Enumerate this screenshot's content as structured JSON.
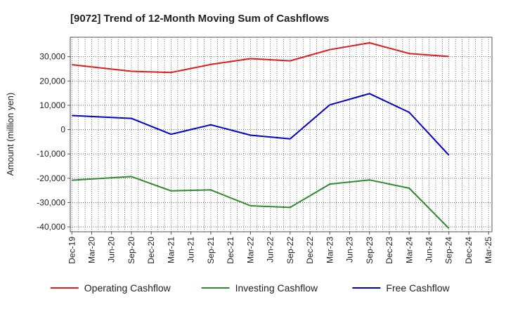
{
  "chart_data": {
    "type": "line",
    "title": "[9072]  Trend of 12-Month Moving Sum of Cashflows",
    "xlabel": "",
    "ylabel": "Amount (million yen)",
    "categories": [
      "Dec-19",
      "Mar-20",
      "Jun-20",
      "Sep-20",
      "Dec-20",
      "Mar-21",
      "Jun-21",
      "Sep-21",
      "Dec-21",
      "Mar-22",
      "Jun-22",
      "Sep-22",
      "Dec-22",
      "Mar-23",
      "Jun-23",
      "Sep-23",
      "Dec-23",
      "Mar-24",
      "Jun-24",
      "Sep-24",
      "Dec-24",
      "Mar-25"
    ],
    "ylim": [
      -42000,
      38000
    ],
    "yticks": [
      -40000,
      -30000,
      -20000,
      -10000,
      0,
      10000,
      20000,
      30000
    ],
    "ytick_labels": [
      "-40,000",
      "-30,000",
      "-20,000",
      "-10,000",
      "0",
      "10,000",
      "20,000",
      "30,000"
    ],
    "grid": true,
    "legend_position": "bottom",
    "series": [
      {
        "name": "Operating Cashflow",
        "color": "#e31a1c",
        "values": [
          26700,
          null,
          null,
          24000,
          null,
          23500,
          null,
          26800,
          null,
          29200,
          null,
          28300,
          null,
          32900,
          null,
          35700,
          null,
          31300,
          null,
          30100,
          null,
          null
        ]
      },
      {
        "name": "Investing Cashflow",
        "color": "#2e8b2e",
        "values": [
          -20800,
          null,
          null,
          -19300,
          null,
          -25200,
          null,
          -24800,
          null,
          -31300,
          null,
          -32000,
          null,
          -22400,
          null,
          -20700,
          null,
          -24100,
          null,
          -40600,
          null,
          null
        ]
      },
      {
        "name": "Free Cashflow",
        "color": "#0000cc",
        "values": [
          5800,
          null,
          null,
          4600,
          null,
          -1900,
          null,
          2000,
          null,
          -2300,
          null,
          -3800,
          null,
          10200,
          null,
          14800,
          null,
          7100,
          null,
          -10500,
          null,
          null
        ]
      }
    ]
  }
}
